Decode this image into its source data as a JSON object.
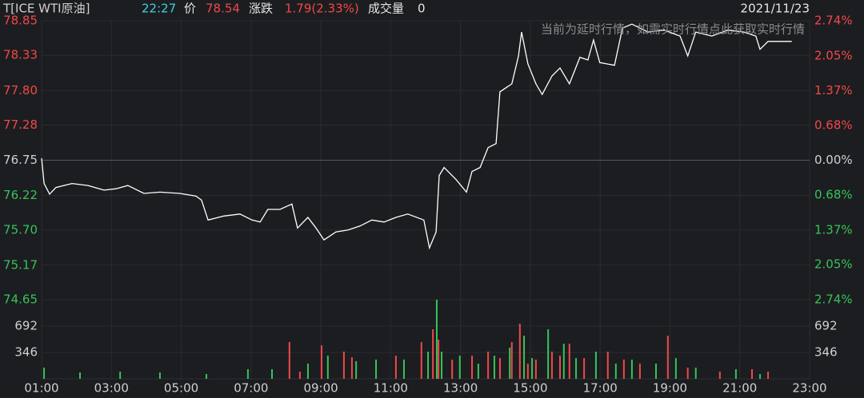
{
  "header": {
    "symbol": "T[ICE WTI原油]",
    "time": "22:27",
    "price_label": "价",
    "price": 78.54,
    "change_label": "涨跌",
    "change": "1.79(2.33%)",
    "volume_label": "成交量",
    "volume": 0,
    "date": "2021/11/23",
    "notice": "当前为延时行情，如需实时行情点此获取实时行情"
  },
  "chart_data": [
    {
      "type": "line",
      "color": "#ffffff",
      "up_color": "#f04848",
      "down_color": "#36c35a",
      "grid": true,
      "x": [
        1.0,
        1.07,
        1.23,
        1.41,
        1.87,
        2.33,
        2.79,
        3.13,
        3.47,
        3.93,
        4.39,
        4.96,
        5.42,
        5.58,
        5.77,
        6.22,
        6.68,
        7.03,
        7.26,
        7.48,
        7.83,
        8.17,
        8.33,
        8.63,
        8.86,
        9.09,
        9.43,
        9.78,
        10.12,
        10.46,
        10.81,
        11.15,
        11.49,
        11.95,
        12.11,
        12.3,
        12.39,
        12.53,
        12.87,
        13.17,
        13.33,
        13.56,
        13.79,
        14.02,
        14.13,
        14.47,
        14.66,
        14.75,
        14.93,
        15.16,
        15.34,
        15.62,
        15.85,
        16.12,
        16.42,
        16.65,
        16.81,
        16.99,
        17.41,
        17.64,
        17.91,
        18.37,
        18.83,
        19.29,
        19.51,
        19.74,
        20.2,
        20.66,
        21.12,
        21.46,
        21.58,
        21.81,
        22.49
      ],
      "values": [
        76.78,
        76.4,
        76.24,
        76.34,
        76.4,
        76.37,
        76.3,
        76.32,
        76.37,
        76.25,
        76.27,
        76.25,
        76.21,
        76.15,
        75.85,
        75.91,
        75.94,
        75.85,
        75.82,
        76.01,
        76.01,
        76.09,
        75.73,
        75.89,
        75.73,
        75.55,
        75.67,
        75.7,
        75.76,
        75.85,
        75.82,
        75.89,
        75.94,
        75.85,
        75.43,
        75.67,
        76.52,
        76.64,
        76.46,
        76.27,
        76.58,
        76.64,
        76.94,
        77.0,
        77.78,
        77.9,
        78.32,
        78.68,
        78.2,
        77.9,
        77.74,
        78.02,
        78.14,
        77.9,
        78.3,
        78.26,
        78.56,
        78.22,
        78.18,
        78.74,
        78.8,
        78.68,
        78.71,
        78.62,
        78.32,
        78.68,
        78.62,
        78.71,
        78.68,
        78.62,
        78.42,
        78.54,
        78.54
      ],
      "xlim": [
        1,
        23
      ],
      "xticks": [
        {
          "value": 1,
          "label": "01:00"
        },
        {
          "value": 3,
          "label": "03:00"
        },
        {
          "value": 5,
          "label": "05:00"
        },
        {
          "value": 7,
          "label": "07:00"
        },
        {
          "value": 9,
          "label": "09:00"
        },
        {
          "value": 11,
          "label": "11:00"
        },
        {
          "value": 13,
          "label": "13:00"
        },
        {
          "value": 15,
          "label": "15:00"
        },
        {
          "value": 17,
          "label": "17:00"
        },
        {
          "value": 19,
          "label": "19:00"
        },
        {
          "value": 21,
          "label": "21:00"
        },
        {
          "value": 23,
          "label": "23:00"
        }
      ],
      "ylim": [
        74.65,
        78.85
      ],
      "yticks": [
        78.85,
        78.33,
        {
          "value": 77.8,
          "label": "77.80"
        },
        77.28,
        76.75,
        76.22,
        {
          "value": 75.7,
          "label": "75.70"
        },
        75.17,
        74.65
      ],
      "y2lim": [
        -2.74,
        2.74
      ],
      "y2ticks": [
        {
          "value": 2.74,
          "label": "2.74%"
        },
        {
          "value": 2.05,
          "label": "2.05%"
        },
        {
          "value": 1.37,
          "label": "1.37%"
        },
        {
          "value": 0.68,
          "label": "0.68%"
        },
        {
          "value": 0,
          "label": "0.00%"
        },
        {
          "value": -0.68,
          "label": "0.68%"
        },
        {
          "value": -1.37,
          "label": "1.37%"
        },
        {
          "value": -2.05,
          "label": "2.05%"
        },
        {
          "value": -2.74,
          "label": "2.74%"
        }
      ]
    },
    {
      "type": "bar",
      "xlim": [
        1,
        23
      ],
      "ylim": [
        0,
        1038
      ],
      "yticks": [
        346,
        692
      ],
      "series": [
        {
          "color": "#f04848",
          "x": [
            8.1,
            8.4,
            9.02,
            9.66,
            9.89,
            11.15,
            11.88,
            12.21,
            12.37,
            12.76,
            13.33,
            13.79,
            14.13,
            14.47,
            14.7,
            14.93,
            15.16,
            15.62,
            15.85,
            16.12,
            16.54,
            17.22,
            17.68,
            18.14,
            18.94,
            19.51,
            20.43,
            21.35,
            21.81
          ],
          "values": [
            482,
            94,
            440,
            356,
            283,
            304,
            482,
            650,
            514,
            252,
            304,
            356,
            272,
            482,
            723,
            199,
            252,
            356,
            304,
            461,
            272,
            356,
            252,
            199,
            566,
            147,
            94,
            126,
            94
          ]
        },
        {
          "color": "#36c35a",
          "x": [
            1.07,
            2.1,
            3.25,
            4.39,
            5.72,
            6.91,
            7.6,
            8.63,
            9.2,
            10.01,
            10.58,
            11.38,
            12.07,
            12.32,
            12.46,
            12.98,
            13.51,
            13.97,
            14.41,
            14.82,
            15.05,
            15.51,
            15.96,
            16.31,
            16.88,
            17.45,
            17.91,
            18.6,
            19.17,
            19.74,
            20.89,
            21.58
          ],
          "values": [
            147,
            84,
            94,
            84,
            63,
            126,
            126,
            199,
            304,
            231,
            252,
            252,
            356,
            1038,
            356,
            304,
            199,
            304,
            409,
            566,
            272,
            650,
            461,
            272,
            356,
            199,
            252,
            199,
            272,
            147,
            126,
            63
          ]
        }
      ]
    }
  ]
}
